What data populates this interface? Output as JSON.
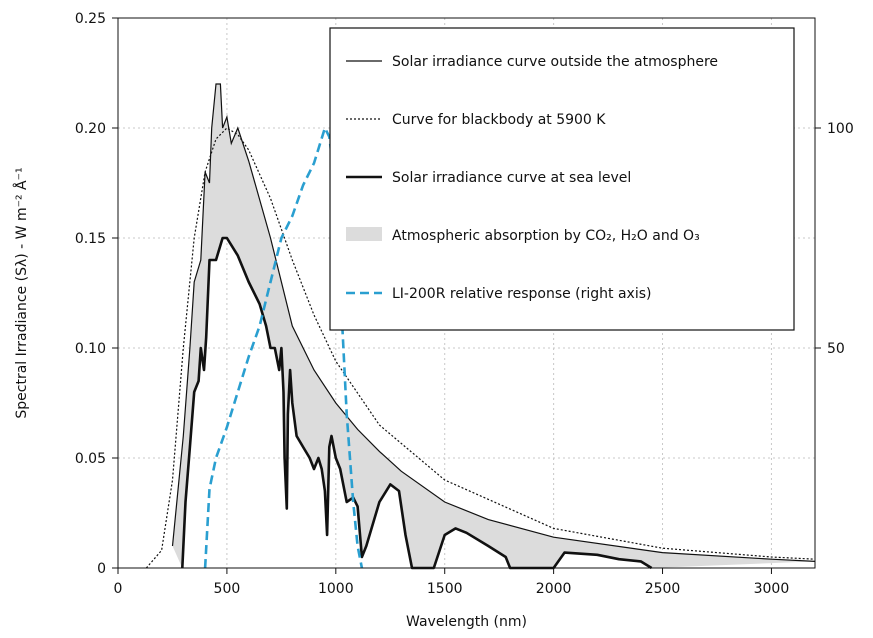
{
  "chart_data": {
    "type": "line",
    "title": "",
    "xlabel": "Wavelength (nm)",
    "ylabel": "Spectral Irradiance (Sλ) - W m⁻² Å⁻¹",
    "xlim": [
      0,
      3200
    ],
    "ylim": [
      0,
      0.25
    ],
    "y2lim": [
      0,
      125
    ],
    "x_ticks": [
      0,
      500,
      1000,
      1500,
      2000,
      2500,
      3000
    ],
    "x_tick_labels": [
      "0",
      "500",
      "1000",
      "1500",
      "2000",
      "2500",
      "3000"
    ],
    "y_ticks": [
      0,
      0.05,
      0.1,
      0.15,
      0.2,
      0.25
    ],
    "y_tick_labels": [
      "0",
      "0.05",
      "0.10",
      "0.15",
      "0.20",
      "0.25"
    ],
    "y2_ticks": [
      50,
      100
    ],
    "y2_tick_labels": [
      "50",
      "100"
    ],
    "grid": true,
    "legend_position": "top-right",
    "legend": [
      {
        "label": "Solar irradiance curve outside the atmosphere",
        "style": "thin-solid",
        "color": "#111111"
      },
      {
        "label": "Curve for blackbody at 5900 K",
        "style": "dotted",
        "color": "#111111"
      },
      {
        "label": "Solar irradiance curve at sea level",
        "style": "thick-solid",
        "color": "#111111"
      },
      {
        "label": "Atmospheric absorption by CO₂, H₂O and O₃",
        "style": "fill",
        "color": "#dcdcdc"
      },
      {
        "label": "LI-200R relative response (right axis)",
        "style": "dashed",
        "color": "#2a9fd0"
      }
    ],
    "series": [
      {
        "name": "Solar irradiance curve outside the atmosphere",
        "axis": "left",
        "x": [
          250,
          300,
          330,
          350,
          380,
          400,
          420,
          430,
          450,
          470,
          480,
          500,
          520,
          550,
          600,
          700,
          800,
          900,
          1000,
          1100,
          1200,
          1300,
          1500,
          1700,
          2000,
          2500,
          3000,
          3200
        ],
        "y": [
          0.01,
          0.06,
          0.1,
          0.13,
          0.14,
          0.18,
          0.175,
          0.2,
          0.22,
          0.22,
          0.2,
          0.205,
          0.193,
          0.2,
          0.185,
          0.15,
          0.11,
          0.09,
          0.075,
          0.063,
          0.053,
          0.044,
          0.03,
          0.022,
          0.014,
          0.007,
          0.004,
          0.003
        ]
      },
      {
        "name": "Curve for blackbody at 5900 K",
        "axis": "left",
        "x": [
          130,
          200,
          250,
          300,
          350,
          400,
          450,
          500,
          550,
          600,
          700,
          800,
          900,
          1000,
          1200,
          1500,
          2000,
          2500,
          3000,
          3200
        ],
        "y": [
          0,
          0.008,
          0.04,
          0.1,
          0.15,
          0.18,
          0.195,
          0.2,
          0.197,
          0.19,
          0.168,
          0.14,
          0.115,
          0.094,
          0.065,
          0.04,
          0.018,
          0.009,
          0.005,
          0.004
        ]
      },
      {
        "name": "Solar irradiance curve at sea level",
        "axis": "left",
        "x": [
          295,
          310,
          330,
          350,
          370,
          380,
          395,
          405,
          420,
          450,
          480,
          500,
          550,
          600,
          650,
          680,
          690,
          700,
          720,
          740,
          750,
          760,
          765,
          775,
          780,
          790,
          800,
          820,
          850,
          880,
          900,
          920,
          935,
          950,
          960,
          970,
          980,
          1000,
          1020,
          1050,
          1080,
          1100,
          1120,
          1140,
          1200,
          1250,
          1290,
          1320,
          1350,
          1400,
          1450,
          1500,
          1550,
          1600,
          1700,
          1780,
          1800,
          2000,
          2050,
          2200,
          2300,
          2400,
          2450
        ],
        "y": [
          0.0,
          0.03,
          0.055,
          0.08,
          0.085,
          0.1,
          0.09,
          0.105,
          0.14,
          0.14,
          0.15,
          0.15,
          0.142,
          0.13,
          0.12,
          0.11,
          0.105,
          0.1,
          0.1,
          0.09,
          0.1,
          0.08,
          0.05,
          0.027,
          0.07,
          0.09,
          0.075,
          0.06,
          0.055,
          0.05,
          0.045,
          0.05,
          0.045,
          0.035,
          0.015,
          0.055,
          0.06,
          0.05,
          0.045,
          0.03,
          0.032,
          0.028,
          0.005,
          0.01,
          0.03,
          0.038,
          0.035,
          0.015,
          0.0,
          0.0,
          0.0,
          0.015,
          0.018,
          0.016,
          0.01,
          0.005,
          0.0,
          0.0,
          0.007,
          0.006,
          0.004,
          0.003,
          0.0
        ]
      },
      {
        "name": "LI-200R relative response (right axis)",
        "axis": "right",
        "x": [
          400,
          420,
          450,
          500,
          550,
          600,
          650,
          700,
          750,
          800,
          850,
          900,
          950,
          970,
          990,
          1010,
          1030,
          1050,
          1080,
          1100,
          1120
        ],
        "y": [
          0,
          18,
          25,
          32,
          40,
          48,
          55,
          65,
          75,
          80,
          87,
          92,
          100,
          98,
          90,
          75,
          55,
          35,
          15,
          5,
          0
        ]
      }
    ]
  }
}
